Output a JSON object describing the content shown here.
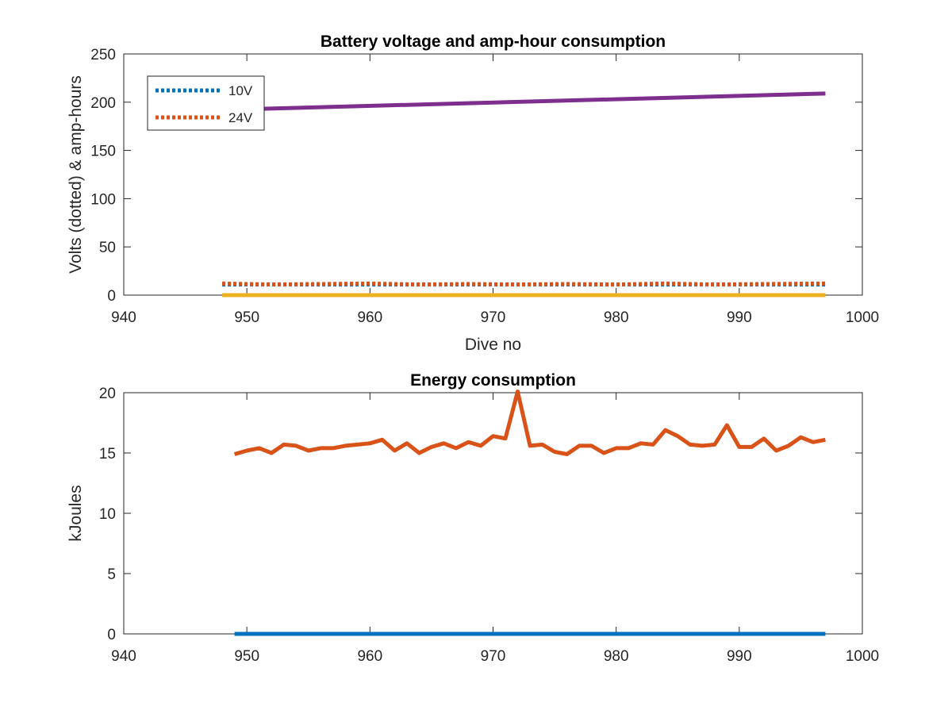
{
  "chart_data": [
    {
      "type": "line",
      "title": "Battery voltage and amp-hour consumption",
      "xlabel": "Dive no",
      "ylabel": "Volts (dotted) & amp-hours",
      "xlim": [
        940,
        1000
      ],
      "ylim": [
        0,
        250
      ],
      "xticks": [
        "940",
        "950",
        "960",
        "970",
        "980",
        "990",
        "1000"
      ],
      "yticks": [
        "0",
        "50",
        "100",
        "150",
        "200",
        "250"
      ],
      "grid": false,
      "legend_position": "top-left",
      "series": [
        {
          "name": "10V",
          "style": "dotted",
          "color": "#0072BD",
          "x": [
            948,
            997
          ],
          "y": [
            11,
            11
          ]
        },
        {
          "name": "24V",
          "style": "dotted",
          "color": "#D95319",
          "x": [
            948,
            952,
            956,
            960,
            964,
            968,
            972,
            976,
            980,
            984,
            988,
            992,
            997
          ],
          "y": [
            12,
            11,
            11.5,
            12,
            11,
            11.5,
            11,
            11.5,
            11,
            12,
            11,
            11.5,
            12
          ]
        },
        {
          "style": "solid",
          "color": "#7E2F8E",
          "x": [
            948,
            997
          ],
          "y": [
            192,
            209
          ]
        },
        {
          "style": "solid",
          "color": "#EDB120",
          "x": [
            948,
            997
          ],
          "y": [
            0,
            0
          ]
        }
      ]
    },
    {
      "type": "line",
      "title": "Energy consumption",
      "xlabel": "",
      "ylabel": "kJoules",
      "xlim": [
        940,
        1000
      ],
      "ylim": [
        0,
        20
      ],
      "xticks": [
        "940",
        "950",
        "960",
        "970",
        "980",
        "990",
        "1000"
      ],
      "yticks": [
        "0",
        "5",
        "10",
        "15",
        "20"
      ],
      "grid": false,
      "series": [
        {
          "style": "solid",
          "color": "#D95319",
          "x": [
            949,
            950,
            951,
            952,
            953,
            954,
            955,
            956,
            957,
            958,
            959,
            960,
            961,
            962,
            963,
            964,
            965,
            966,
            967,
            968,
            969,
            970,
            971,
            972,
            973,
            974,
            975,
            976,
            977,
            978,
            979,
            980,
            981,
            982,
            983,
            984,
            985,
            986,
            987,
            988,
            989,
            990,
            991,
            992,
            993,
            994,
            995,
            996,
            997
          ],
          "y": [
            14.9,
            15.2,
            15.4,
            15.0,
            15.7,
            15.6,
            15.2,
            15.4,
            15.4,
            15.6,
            15.7,
            15.8,
            16.1,
            15.2,
            15.8,
            15.0,
            15.5,
            15.8,
            15.4,
            15.9,
            15.6,
            16.4,
            16.2,
            20.1,
            15.6,
            15.7,
            15.1,
            14.9,
            15.6,
            15.6,
            15.0,
            15.4,
            15.4,
            15.8,
            15.7,
            16.9,
            16.4,
            15.7,
            15.6,
            15.7,
            17.3,
            15.5,
            15.5,
            16.2,
            15.2,
            15.6,
            16.3,
            15.9,
            16.1
          ]
        },
        {
          "style": "solid",
          "color": "#0072BD",
          "x": [
            949,
            997
          ],
          "y": [
            0,
            0
          ]
        }
      ]
    }
  ]
}
